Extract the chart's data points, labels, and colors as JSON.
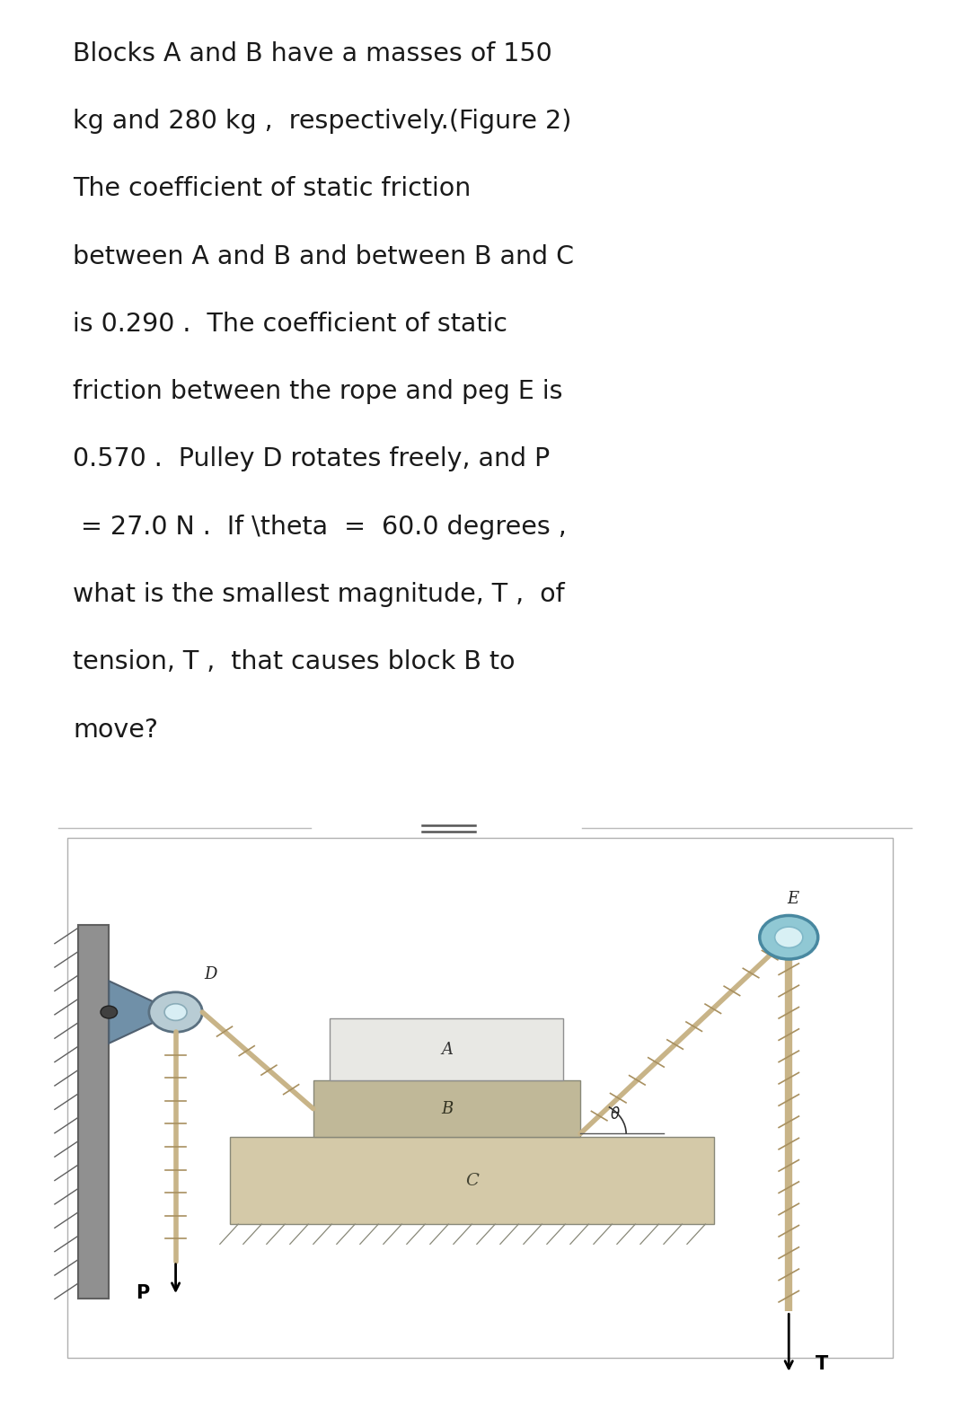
{
  "text_lines": [
    "Blocks A and B have a masses of 150",
    "kg and 280 kg ,  respectively.(Figure 2)",
    "The coefficient of static friction",
    "between A and B and between B and C",
    "is 0.290 .  The coefficient of static",
    "friction between the rope and peg E is",
    "0.570 .  Pulley D rotates freely, and P",
    " = 27.0 N .  If \\theta  =  60.0 degrees ,",
    "what is the smallest magnitude, T ,  of",
    "tension, T ,  that causes block B to",
    "move?"
  ],
  "bg_color": "#ffffff",
  "text_color": "#1a1a1a",
  "text_fontsize": 20.5,
  "fig_width": 10.8,
  "fig_height": 15.69,
  "ground_color": "#d4c9a8",
  "ground_color2": "#c8bfa0",
  "block_A_color": "#e8e8e4",
  "block_B_color": "#c0b898",
  "rope_color": "#c8b488",
  "rope_dark": "#a89060",
  "peg_outer_color": "#90c8d4",
  "peg_inner_color": "#d8f0f4",
  "wall_color": "#888888",
  "post_color": "#c8b488",
  "bracket_color": "#7090a8"
}
